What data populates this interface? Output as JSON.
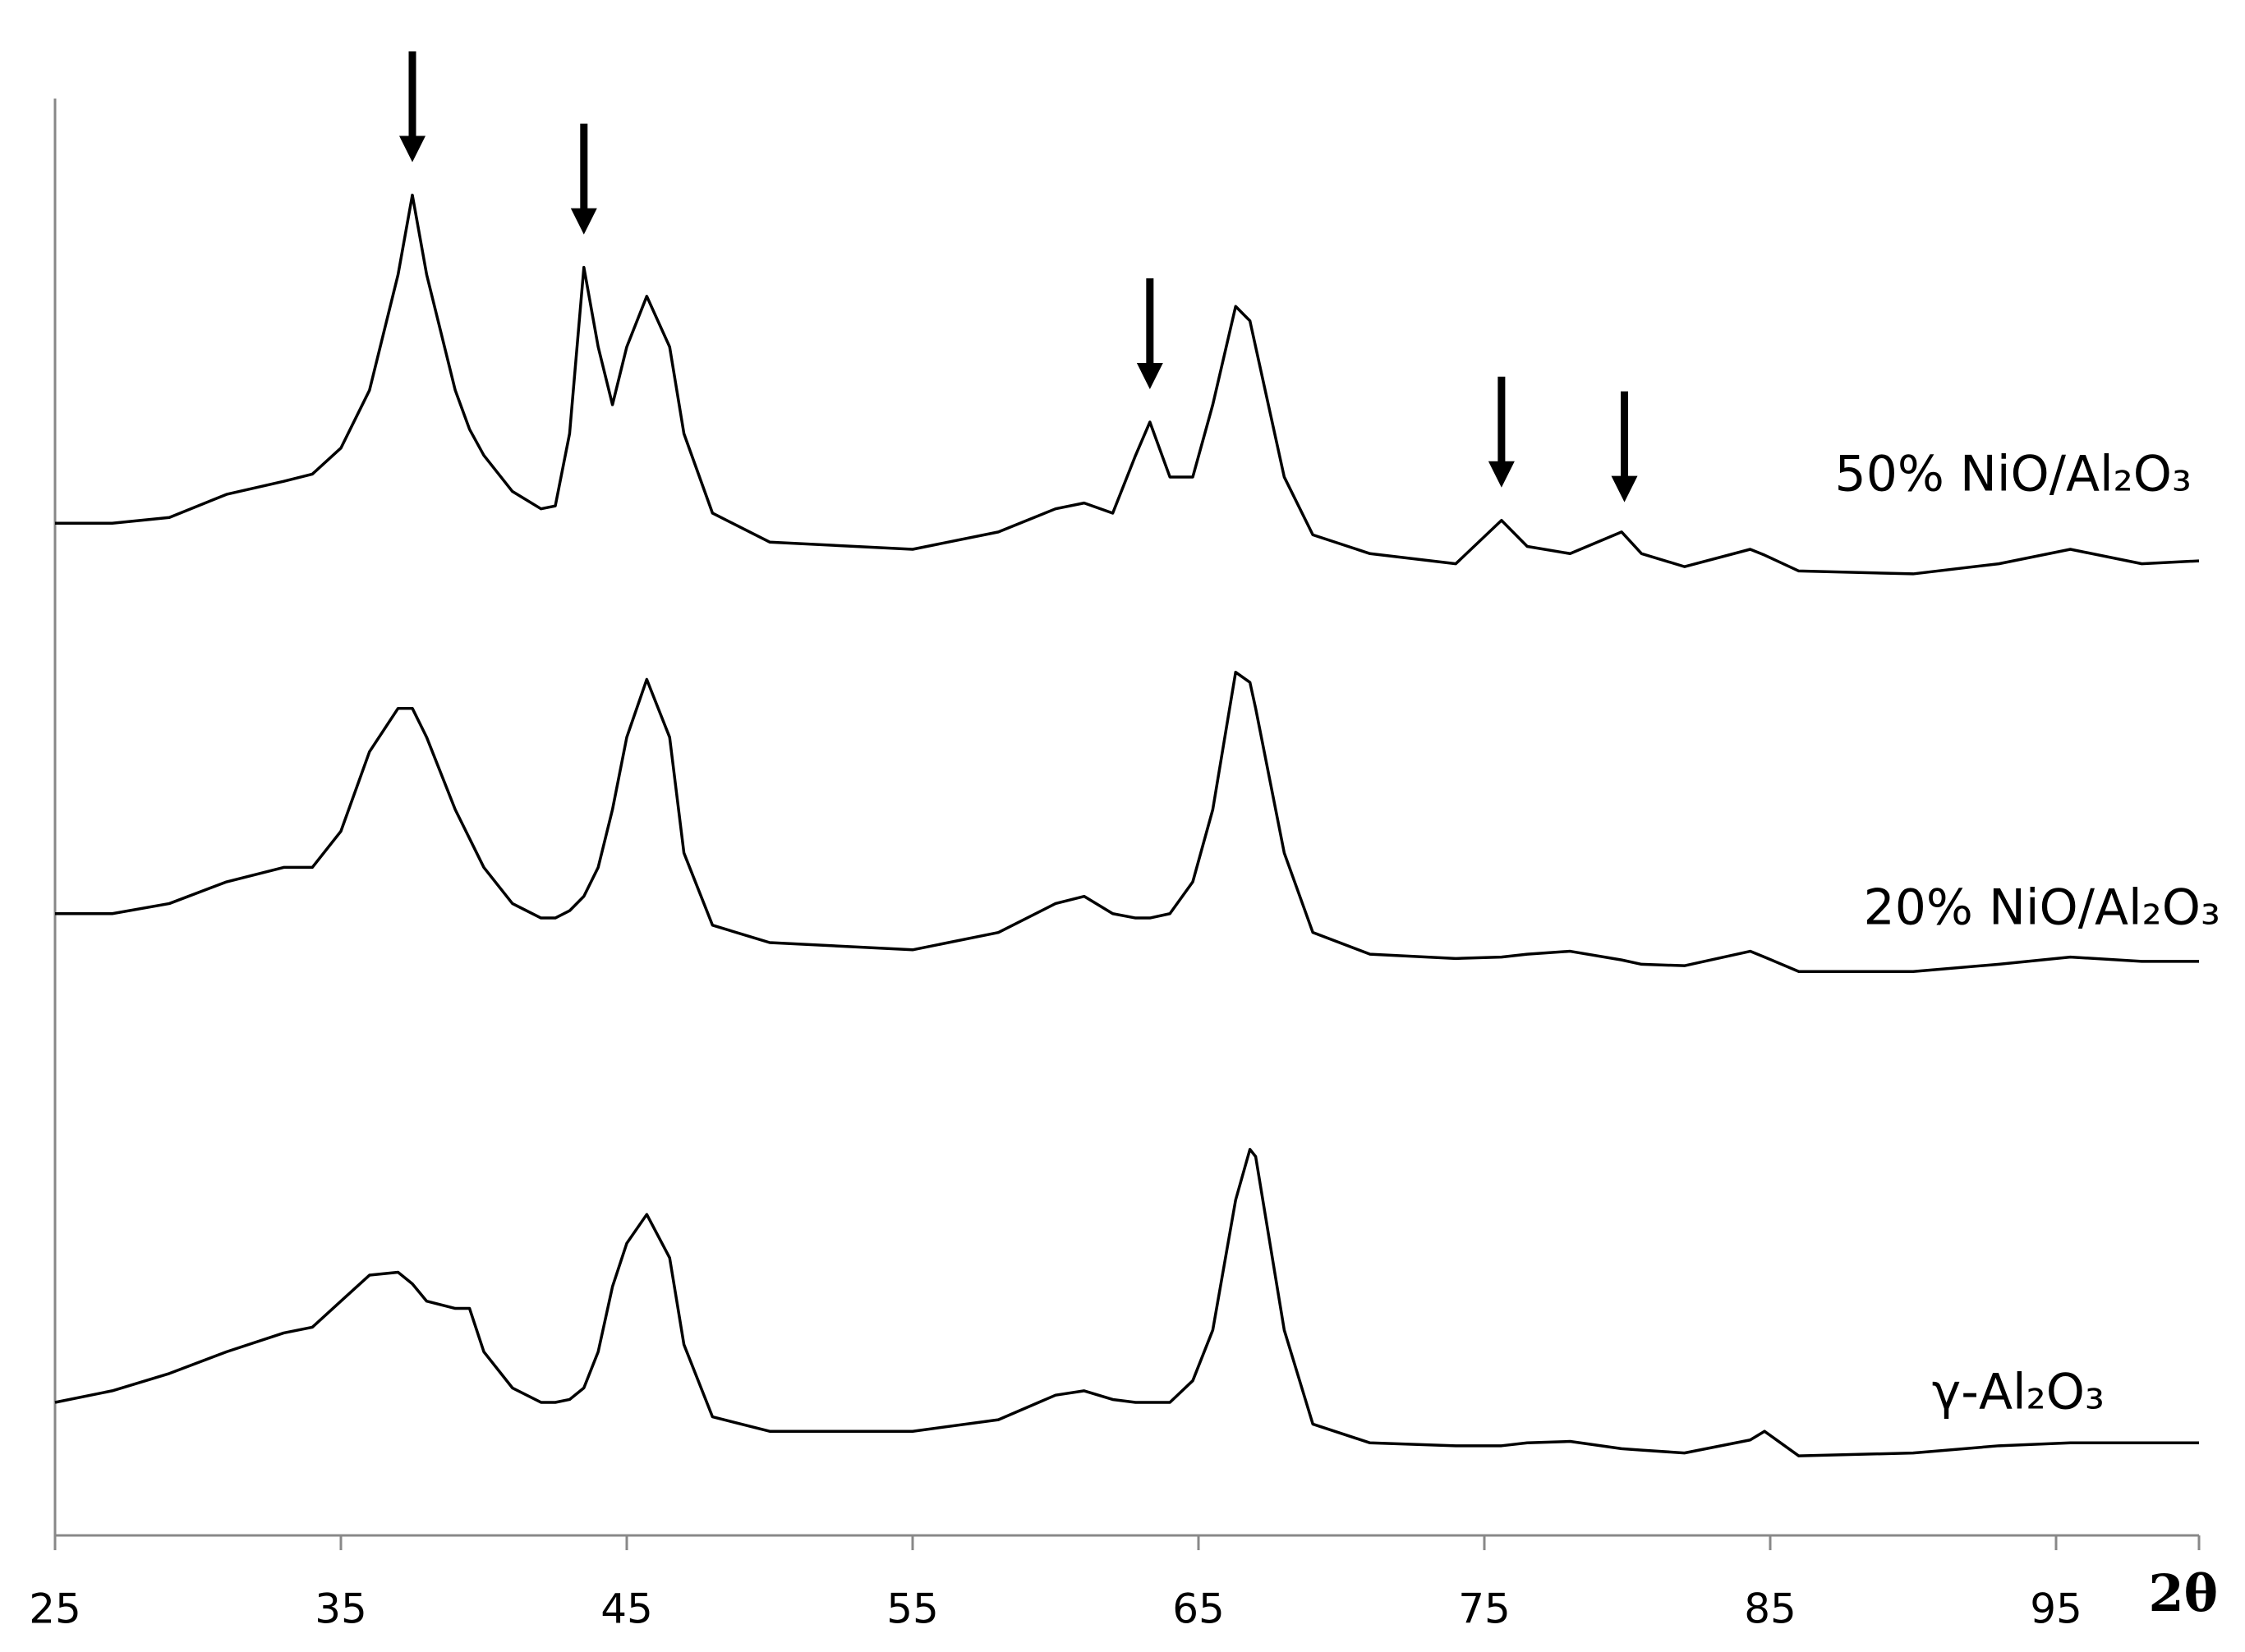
{
  "chart_data": {
    "type": "line",
    "x_label": "2θ",
    "x": [
      25,
      27,
      29,
      31,
      33,
      34,
      35,
      36,
      37,
      37.5,
      38,
      39,
      39.5,
      40,
      41,
      42,
      42.5,
      43,
      43.5,
      44,
      44.5,
      45,
      45.7,
      46.5,
      47,
      48,
      50,
      55,
      58,
      60,
      61,
      62,
      62.8,
      63.3,
      64,
      64.8,
      65.5,
      66.3,
      66.8,
      67,
      68,
      69,
      71,
      74,
      75.6,
      76.5,
      78,
      79.8,
      80.5,
      82,
      84.3,
      84.8,
      86,
      90,
      93,
      95.5,
      98,
      100
    ],
    "series": [
      {
        "name": "50% NiO/Al₂O₃",
        "color": "#000000",
        "values": [
          70.0,
          70.0,
          70.4,
          72.0,
          72.9,
          73.4,
          75.2,
          79.2,
          87.2,
          92.7,
          87.2,
          79.2,
          76.5,
          74.7,
          72.2,
          71.0,
          71.2,
          76.2,
          87.7,
          82.2,
          78.2,
          82.2,
          85.7,
          82.2,
          76.2,
          70.7,
          68.7,
          68.2,
          69.4,
          71.0,
          71.4,
          70.7,
          74.7,
          77.0,
          73.2,
          73.2,
          78.2,
          85.0,
          84.0,
          82.2,
          73.2,
          69.2,
          67.9,
          67.2,
          70.2,
          68.4,
          67.9,
          69.4,
          67.9,
          67.0,
          68.2,
          67.8,
          66.7,
          66.5,
          67.2,
          68.2,
          67.2,
          67.4
        ]
      },
      {
        "name": "20% NiO/Al₂O₃",
        "color": "#000000",
        "values": [
          43.0,
          43.0,
          43.7,
          45.2,
          46.2,
          46.2,
          48.7,
          54.2,
          57.2,
          57.2,
          55.2,
          50.2,
          48.2,
          46.2,
          43.7,
          42.7,
          42.7,
          43.2,
          44.2,
          46.2,
          50.2,
          55.2,
          59.2,
          55.2,
          47.2,
          42.2,
          41.0,
          40.5,
          41.7,
          43.7,
          44.2,
          43.0,
          42.7,
          42.7,
          43.0,
          45.2,
          50.2,
          59.7,
          59.0,
          57.2,
          47.2,
          41.7,
          40.2,
          39.9,
          40.0,
          40.2,
          40.4,
          39.8,
          39.5,
          39.4,
          40.4,
          40.0,
          39.0,
          39.0,
          39.5,
          40.0,
          39.7,
          39.7
        ]
      },
      {
        "name": "γ-Al₂O₃",
        "color": "#000000",
        "values": [
          9.2,
          10.0,
          11.2,
          12.7,
          14.0,
          14.4,
          16.2,
          18.0,
          18.2,
          17.4,
          16.2,
          15.7,
          15.7,
          12.7,
          10.2,
          9.2,
          9.2,
          9.4,
          10.2,
          12.7,
          17.2,
          20.2,
          22.2,
          19.2,
          13.2,
          8.2,
          7.2,
          7.2,
          8.0,
          9.7,
          10.0,
          9.4,
          9.2,
          9.2,
          9.2,
          10.7,
          14.2,
          23.2,
          26.7,
          26.2,
          14.2,
          7.7,
          6.4,
          6.2,
          6.2,
          6.4,
          6.5,
          6.0,
          5.9,
          5.7,
          6.6,
          7.2,
          5.5,
          5.7,
          6.2,
          6.4,
          6.4,
          6.4
        ]
      }
    ],
    "peak_markers": [
      37.5,
      43.5,
      63.3,
      75.6,
      79.9
    ],
    "xlim": [
      25,
      100
    ],
    "xticks": [
      25,
      35,
      45,
      55,
      65,
      75,
      85,
      95
    ],
    "ylim": [
      0,
      100
    ],
    "grid": false
  }
}
